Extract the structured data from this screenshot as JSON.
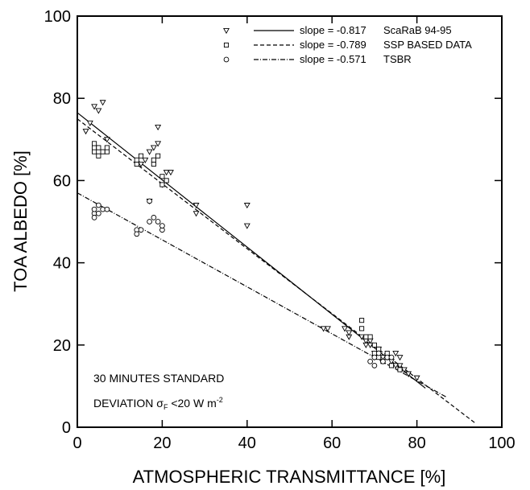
{
  "chart_data": {
    "type": "scatter",
    "xlabel": "ATMOSPHERIC  TRANSMITTANCE [%]",
    "ylabel": "TOA  ALBEDO [%]",
    "xlim": [
      0,
      100
    ],
    "ylim": [
      0,
      100
    ],
    "xticks": [
      "0",
      "20",
      "40",
      "60",
      "80",
      "100"
    ],
    "yticks": [
      "0",
      "20",
      "40",
      "60",
      "80",
      "100"
    ],
    "legend_position": "top-right",
    "grid": false,
    "annotation_line1": "30 MINUTES STANDARD",
    "annotation_line2_prefix": "DEVIATION σ",
    "annotation_line2_sub": "F",
    "annotation_line2_mid": " <20 W m",
    "annotation_line2_sup": "-2",
    "series": [
      {
        "name": "ScaRaB 94-95",
        "slope_label": "slope = -0.817",
        "marker": "triangle-down",
        "line_style": "solid",
        "fit": {
          "x_start": 0,
          "y_start": 76.5,
          "x_end": 82,
          "y_end": 9.5
        },
        "points": [
          [
            2,
            72
          ],
          [
            3,
            74
          ],
          [
            4,
            78
          ],
          [
            5,
            77
          ],
          [
            6,
            79
          ],
          [
            7,
            70
          ],
          [
            15,
            64
          ],
          [
            16,
            65
          ],
          [
            17,
            67
          ],
          [
            17,
            55
          ],
          [
            18,
            68
          ],
          [
            19,
            73
          ],
          [
            19,
            69
          ],
          [
            20,
            59
          ],
          [
            21,
            62
          ],
          [
            22,
            62
          ],
          [
            28,
            54
          ],
          [
            28,
            52
          ],
          [
            40,
            54
          ],
          [
            40,
            49
          ],
          [
            58,
            24
          ],
          [
            59,
            24
          ],
          [
            63,
            24
          ],
          [
            64,
            22
          ],
          [
            64,
            23
          ],
          [
            67,
            22
          ],
          [
            68,
            21
          ],
          [
            68,
            20
          ],
          [
            69,
            21
          ],
          [
            69,
            20
          ],
          [
            70,
            17
          ],
          [
            70,
            18
          ],
          [
            71,
            19
          ],
          [
            72,
            17
          ],
          [
            73,
            17
          ],
          [
            74,
            16
          ],
          [
            75,
            15
          ],
          [
            75,
            18
          ],
          [
            76,
            15
          ],
          [
            76,
            17
          ],
          [
            77,
            14
          ],
          [
            78,
            13
          ],
          [
            80,
            12
          ]
        ]
      },
      {
        "name": "SSP BASED DATA",
        "slope_label": "slope = -0.789",
        "marker": "square",
        "line_style": "dashed",
        "fit": {
          "x_start": 0,
          "y_start": 75,
          "x_end": 94,
          "y_end": 0.8
        },
        "points": [
          [
            4,
            67
          ],
          [
            4,
            68
          ],
          [
            4,
            69
          ],
          [
            5,
            66
          ],
          [
            5,
            68
          ],
          [
            6,
            67
          ],
          [
            7,
            67
          ],
          [
            7,
            68
          ],
          [
            14,
            64
          ],
          [
            14,
            65
          ],
          [
            15,
            66
          ],
          [
            18,
            64
          ],
          [
            18,
            65
          ],
          [
            19,
            66
          ],
          [
            20,
            61
          ],
          [
            20,
            59
          ],
          [
            21,
            60
          ],
          [
            67,
            26
          ],
          [
            67,
            24
          ],
          [
            68,
            22
          ],
          [
            69,
            22
          ],
          [
            70,
            20
          ],
          [
            70,
            18
          ],
          [
            71,
            17
          ],
          [
            71,
            19
          ],
          [
            72,
            16
          ],
          [
            73,
            18
          ],
          [
            74,
            15
          ],
          [
            76,
            14
          ]
        ]
      },
      {
        "name": "TSBR",
        "slope_label": "slope = -0.571",
        "marker": "circle",
        "line_style": "dashdot",
        "fit": {
          "x_start": 0,
          "y_start": 57,
          "x_end": 87,
          "y_end": 7.3
        },
        "points": [
          [
            4,
            52
          ],
          [
            4,
            53
          ],
          [
            4,
            51
          ],
          [
            5,
            52
          ],
          [
            5,
            54
          ],
          [
            6,
            53
          ],
          [
            7,
            53
          ],
          [
            14,
            48
          ],
          [
            14,
            47
          ],
          [
            15,
            48
          ],
          [
            17,
            50
          ],
          [
            17,
            55
          ],
          [
            18,
            51
          ],
          [
            19,
            50
          ],
          [
            20,
            48
          ],
          [
            20,
            49
          ],
          [
            69,
            16
          ],
          [
            70,
            15
          ],
          [
            70,
            17
          ],
          [
            71,
            18
          ],
          [
            72,
            16
          ],
          [
            73,
            17
          ],
          [
            74,
            17
          ]
        ]
      }
    ]
  }
}
